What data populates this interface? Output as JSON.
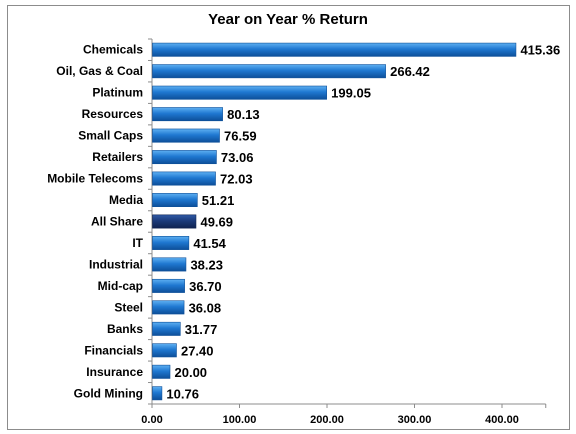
{
  "chart_data": {
    "type": "bar",
    "orientation": "horizontal",
    "title": "Year on Year % Return",
    "xlabel": "",
    "ylabel": "",
    "categories": [
      "Chemicals",
      "Oil, Gas & Coal",
      "Platinum",
      "Resources",
      "Small Caps",
      "Retailers",
      "Mobile Telecoms",
      "Media",
      "All Share",
      "IT",
      "Industrial",
      "Mid-cap",
      "Steel",
      "Banks",
      "Financials",
      "Insurance",
      "Gold Mining"
    ],
    "values": [
      415.36,
      266.42,
      199.05,
      80.13,
      76.59,
      73.06,
      72.03,
      51.21,
      49.69,
      41.54,
      38.23,
      36.7,
      36.08,
      31.77,
      27.4,
      20.0,
      10.76
    ],
    "value_labels": [
      "415.36",
      "266.42",
      "199.05",
      "80.13",
      "76.59",
      "73.06",
      "72.03",
      "51.21",
      "49.69",
      "41.54",
      "38.23",
      "36.70",
      "36.08",
      "31.77",
      "27.40",
      "20.00",
      "10.76"
    ],
    "xlim": [
      0,
      450
    ],
    "xticks": [
      0,
      100,
      200,
      300,
      400
    ],
    "xtick_labels": [
      "0.00",
      "100.00",
      "200.00",
      "300.00",
      "400.00"
    ],
    "grid": false,
    "legend": "none",
    "highlight_category": "All Share",
    "colors": {
      "bar": "#1f78d1",
      "bar_light": "#5eb0f2",
      "bar_dark": "#0d4f99",
      "highlight": "#1b3a7a",
      "highlight_light": "#2f5aa6",
      "highlight_dark": "#0f2350",
      "axis": "#8c8c8c"
    }
  }
}
